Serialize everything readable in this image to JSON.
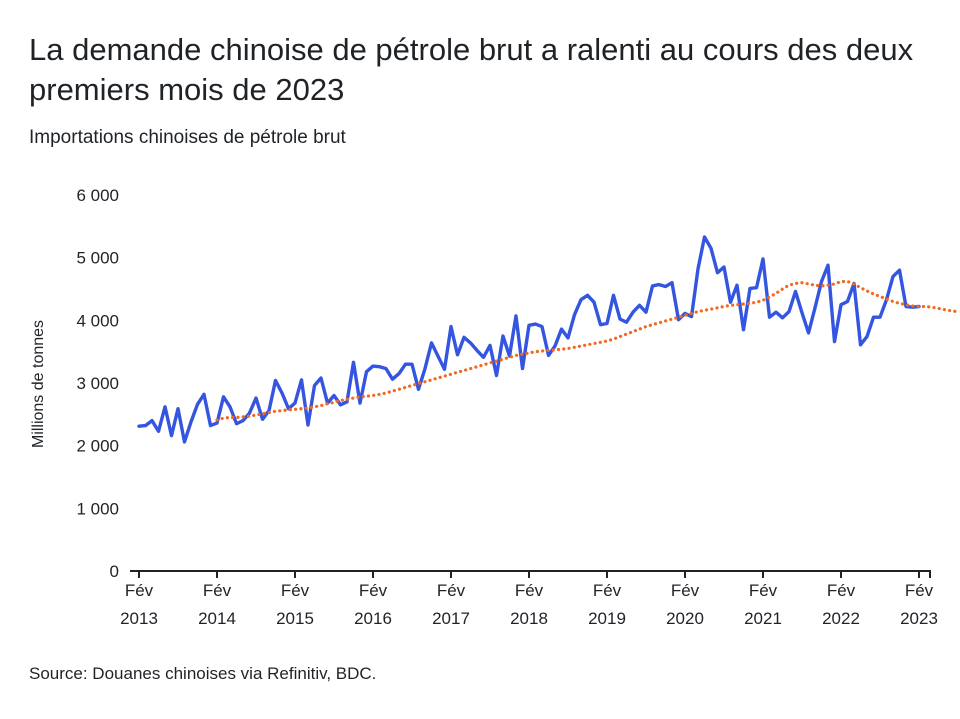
{
  "title": "La demande chinoise de pétrole brut a ralenti au cours des deux premiers mois de 2023",
  "subtitle": "Importations chinoises de pétrole brut",
  "source": "Source: Douanes chinoises via Refinitiv, BDC.",
  "colors": {
    "series": "#3355e0",
    "average": "#f26a21",
    "axis": "#1f2328"
  },
  "chart_data": {
    "type": "line",
    "ylabel": "Millions de tonnes",
    "ylim": [
      0,
      6000
    ],
    "yticks": [
      0,
      1000,
      2000,
      3000,
      4000,
      5000,
      6000
    ],
    "ytick_labels": [
      "0",
      "1 000",
      "2 000",
      "3 000",
      "4 000",
      "5 000",
      "6 000"
    ],
    "xticks": [
      {
        "month": "Fév",
        "year": "2013"
      },
      {
        "month": "Fév",
        "year": "2014"
      },
      {
        "month": "Fév",
        "year": "2015"
      },
      {
        "month": "Fév",
        "year": "2016"
      },
      {
        "month": "Fév",
        "year": "2017"
      },
      {
        "month": "Fév",
        "year": "2018"
      },
      {
        "month": "Fév",
        "year": "2019"
      },
      {
        "month": "Fév",
        "year": "2020"
      },
      {
        "month": "Fév",
        "year": "2021"
      },
      {
        "month": "Fév",
        "year": "2022"
      },
      {
        "month": "Fév",
        "year": "2023"
      }
    ],
    "x_start": "2013-02",
    "x_end": "2023-02",
    "grid": false,
    "series": [
      {
        "style": "solid",
        "values": [
          2310,
          2320,
          2400,
          2230,
          2620,
          2160,
          2590,
          2060,
          2380,
          2660,
          2820,
          2320,
          2360,
          2780,
          2620,
          2350,
          2400,
          2520,
          2760,
          2420,
          2560,
          3040,
          2840,
          2590,
          2680,
          3050,
          2330,
          2960,
          3080,
          2680,
          2800,
          2650,
          2700,
          3330,
          2680,
          3180,
          3270,
          3260,
          3230,
          3060,
          3150,
          3300,
          3300,
          2900,
          3230,
          3640,
          3430,
          3220,
          3900,
          3450,
          3730,
          3640,
          3520,
          3410,
          3600,
          3120,
          3750,
          3430,
          4070,
          3230,
          3920,
          3940,
          3900,
          3440,
          3590,
          3860,
          3720,
          4090,
          4330,
          4400,
          4290,
          3930,
          3950,
          4400,
          4020,
          3970,
          4130,
          4240,
          4130,
          4550,
          4570,
          4540,
          4600,
          4010,
          4110,
          4060,
          4820,
          5330,
          5150,
          4760,
          4850,
          4290,
          4560,
          3850,
          4510,
          4520,
          4980,
          4050,
          4130,
          4040,
          4140,
          4460,
          4120,
          3800,
          4200,
          4620,
          4880,
          3660,
          4250,
          4300,
          4590,
          3610,
          3740,
          4050,
          4050,
          4330,
          4700,
          4800,
          4220,
          4210,
          4220
        ],
        "name": ""
      },
      {
        "style": "dotted",
        "start_index": 12,
        "values": [
          2410,
          2440,
          2450,
          2450,
          2460,
          2470,
          2490,
          2510,
          2530,
          2550,
          2560,
          2570,
          2580,
          2590,
          2600,
          2620,
          2640,
          2670,
          2690,
          2720,
          2740,
          2760,
          2780,
          2790,
          2800,
          2820,
          2840,
          2870,
          2900,
          2930,
          2960,
          2990,
          3020,
          3050,
          3080,
          3110,
          3140,
          3170,
          3200,
          3230,
          3260,
          3290,
          3320,
          3350,
          3380,
          3410,
          3440,
          3460,
          3480,
          3500,
          3510,
          3520,
          3530,
          3540,
          3550,
          3570,
          3590,
          3610,
          3630,
          3650,
          3670,
          3700,
          3740,
          3780,
          3820,
          3860,
          3900,
          3930,
          3960,
          3990,
          4020,
          4050,
          4080,
          4110,
          4140,
          4160,
          4180,
          4200,
          4220,
          4240,
          4250,
          4260,
          4270,
          4290,
          4320,
          4370,
          4430,
          4500,
          4560,
          4590,
          4600,
          4580,
          4560,
          4550,
          4560,
          4580,
          4620,
          4620,
          4580,
          4520,
          4470,
          4420,
          4380,
          4340,
          4300,
          4270,
          4250,
          4230,
          4220,
          4220,
          4210,
          4190,
          4170,
          4150,
          4140
        ],
        "name": ""
      }
    ]
  }
}
